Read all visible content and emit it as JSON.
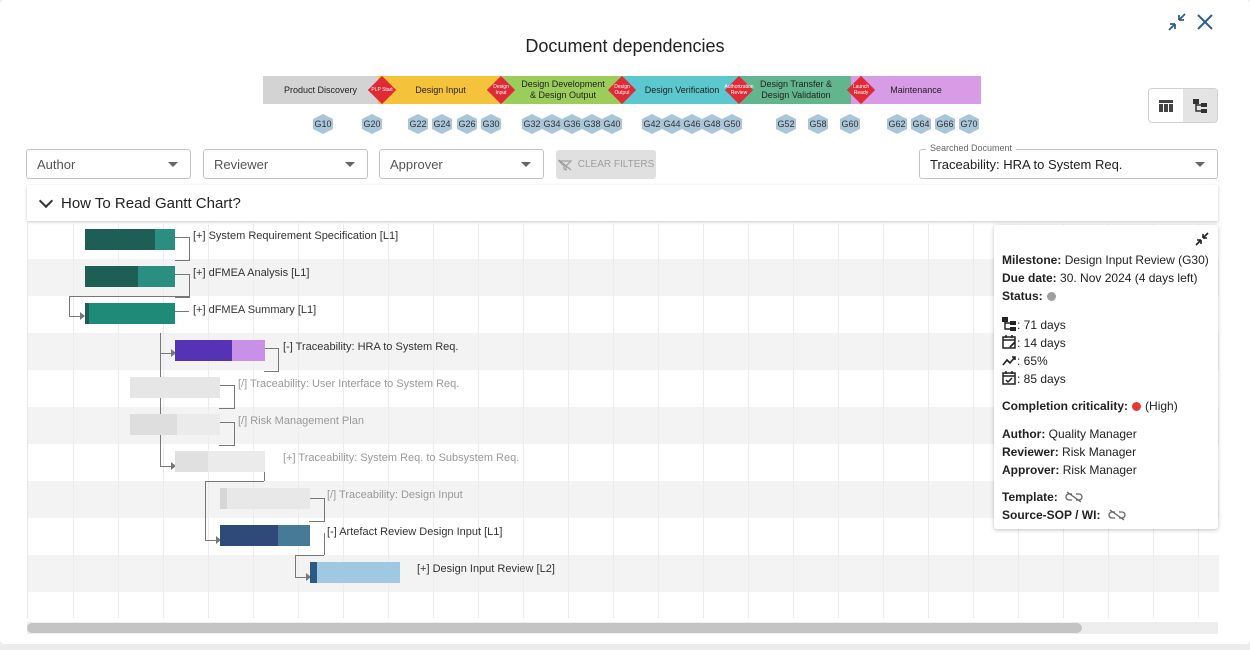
{
  "dialog": {
    "title": "Document dependencies"
  },
  "phases": [
    {
      "label": "Product Discovery",
      "color": "#d3d3d3"
    },
    {
      "label": "Design Input",
      "color": "#f5c33b"
    },
    {
      "label": "Design Development & Design Output",
      "color": "#9acd5a"
    },
    {
      "label": "Design Verification",
      "color": "#5bc8cf"
    },
    {
      "label": "Design Transfer & Design Validation",
      "color": "#63b58e"
    },
    {
      "label": "Maintenance",
      "color": "#d89be6"
    }
  ],
  "gates": [
    {
      "label": "PLP Start"
    },
    {
      "label": "Design Input"
    },
    {
      "label": "Design Output"
    },
    {
      "label": "Authorization Review"
    },
    {
      "label": "Launch Ready"
    }
  ],
  "milestones": [
    "G10",
    "G20",
    "G22",
    "G24",
    "G26",
    "G30",
    "G32",
    "G34",
    "G36",
    "G38",
    "G40",
    "G42",
    "G44",
    "G46",
    "G48",
    "G50",
    "G52",
    "G58",
    "G60",
    "G62",
    "G64",
    "G66",
    "G70"
  ],
  "filters": {
    "author": "Author",
    "reviewer": "Reviewer",
    "approver": "Approver",
    "clear": "CLEAR FILTERS",
    "searched_label": "Searched Document",
    "searched_value": "Traceability: HRA to System Req."
  },
  "howto": {
    "title": "How To Read Gantt Chart?"
  },
  "gantt": {
    "rows": [
      {
        "label": "[+] System Requirement Specification [L1]",
        "dim": false
      },
      {
        "label": "[+] dFMEA Analysis [L1]",
        "dim": false
      },
      {
        "label": "[+] dFMEA Summary [L1]",
        "dim": false
      },
      {
        "label": "[-] Traceability: HRA to System Req.",
        "dim": false
      },
      {
        "label": "[/] Traceability: User Interface to System Req.",
        "dim": true
      },
      {
        "label": "[/] Risk Management Plan",
        "dim": true
      },
      {
        "label": "[+] Traceability: System Req. to Subsystem Req.",
        "dim": true
      },
      {
        "label": "[/] Traceability: Design Input",
        "dim": true
      },
      {
        "label": "[-] Artefact Review Design Input [L1]",
        "dim": false
      },
      {
        "label": "[+] Design Input Review [L2]",
        "dim": false
      }
    ]
  },
  "panel": {
    "milestone_key": "Milestone:",
    "milestone_val": "Design Input Review (G30)",
    "due_key": "Due date:",
    "due_val": "30. Nov 2024 (4 days left)",
    "status_key": "Status:",
    "status_color": "#9e9e9e",
    "metric1": ": 71 days",
    "metric2": ": 14 days",
    "metric3": ": 65%",
    "metric4": ": 85 days",
    "criticality_key": "Completion criticality:",
    "criticality_val": "(High)",
    "criticality_color": "#e53935",
    "author_key": "Author:",
    "author_val": "Quality Manager",
    "reviewer_key": "Reviewer:",
    "reviewer_val": "Risk Manager",
    "approver_key": "Approver:",
    "approver_val": "Risk Manager",
    "template_key": "Template:",
    "source_key": "Source-SOP / WI:"
  }
}
